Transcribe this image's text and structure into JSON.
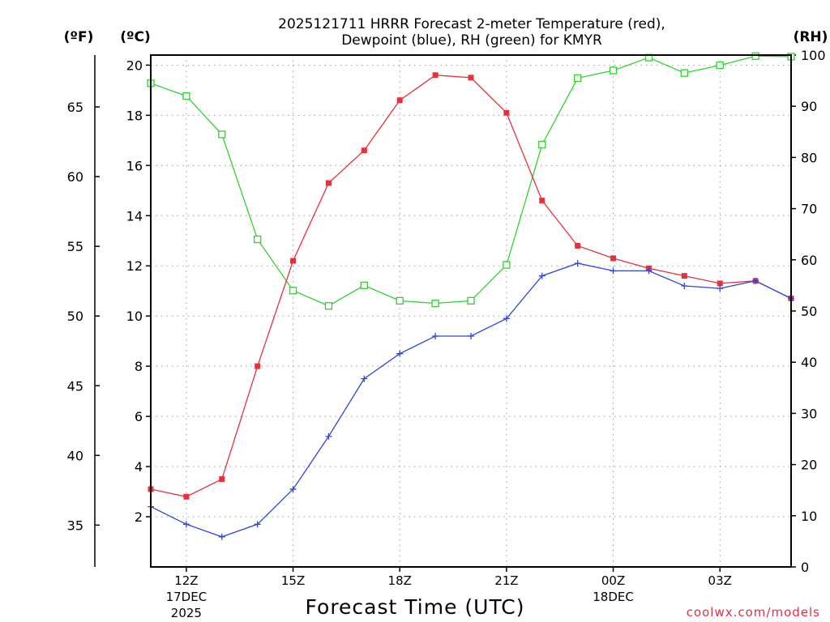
{
  "title_line1": "2025121711 HRRR Forecast 2-meter Temperature (red),",
  "title_line2": "Dewpoint (blue), RH (green) for KMYR",
  "credit": "coolwx.com/models",
  "chart_data": {
    "type": "line",
    "title": "2025121711 HRRR Forecast 2-meter Temperature (red), Dewpoint (blue), RH (green) for KMYR",
    "xlabel": "Forecast Time (UTC)",
    "x_hours": [
      11,
      12,
      13,
      14,
      15,
      16,
      17,
      18,
      19,
      20,
      21,
      22,
      23,
      24,
      25,
      26,
      27,
      28,
      29
    ],
    "xlim": [
      11,
      29
    ],
    "x_ticks": [
      {
        "hour": 12,
        "label": "12Z",
        "sub1": "17DEC",
        "sub2": "2025"
      },
      {
        "hour": 15,
        "label": "15Z",
        "sub1": "",
        "sub2": ""
      },
      {
        "hour": 18,
        "label": "18Z",
        "sub1": "",
        "sub2": ""
      },
      {
        "hour": 21,
        "label": "21Z",
        "sub1": "",
        "sub2": ""
      },
      {
        "hour": 24,
        "label": "00Z",
        "sub1": "18DEC",
        "sub2": ""
      },
      {
        "hour": 27,
        "label": "03Z",
        "sub1": "",
        "sub2": ""
      }
    ],
    "y_left_c": {
      "label": "(ºC)",
      "lim": [
        0,
        20.4
      ],
      "ticks": [
        "2",
        "4",
        "6",
        "8",
        "10",
        "12",
        "14",
        "16",
        "18",
        "20"
      ]
    },
    "y_left_f": {
      "label": "(ºF)",
      "ticks": [
        "35",
        "40",
        "45",
        "50",
        "55",
        "60",
        "65"
      ]
    },
    "y_right_rh": {
      "label": "(RH)",
      "lim": [
        0,
        100
      ],
      "ticks": [
        "0",
        "10",
        "20",
        "30",
        "40",
        "50",
        "60",
        "70",
        "80",
        "90",
        "100"
      ]
    },
    "series": [
      {
        "name": "Temperature",
        "unit": "C",
        "color": "#e8303a",
        "values": [
          3.1,
          2.8,
          3.5,
          8.0,
          12.2,
          15.3,
          16.6,
          18.6,
          19.6,
          19.5,
          18.1,
          14.6,
          12.8,
          12.3,
          11.9,
          11.6,
          11.3,
          11.4,
          10.7
        ]
      },
      {
        "name": "Dewpoint",
        "unit": "C",
        "color": "#2f47e0",
        "values": [
          2.4,
          1.7,
          1.2,
          1.7,
          3.1,
          5.2,
          7.5,
          8.5,
          9.2,
          9.2,
          9.9,
          11.6,
          12.1,
          11.8,
          11.8,
          11.2,
          11.1,
          11.4,
          10.7
        ]
      },
      {
        "name": "RH",
        "unit": "%",
        "color": "#2fd22f",
        "values": [
          94.5,
          92.0,
          84.5,
          64.0,
          54.0,
          51.0,
          55.0,
          52.0,
          51.5,
          52.0,
          59.0,
          82.5,
          95.5,
          97.0,
          99.5,
          96.5,
          98.0,
          99.8,
          99.7
        ]
      }
    ]
  }
}
